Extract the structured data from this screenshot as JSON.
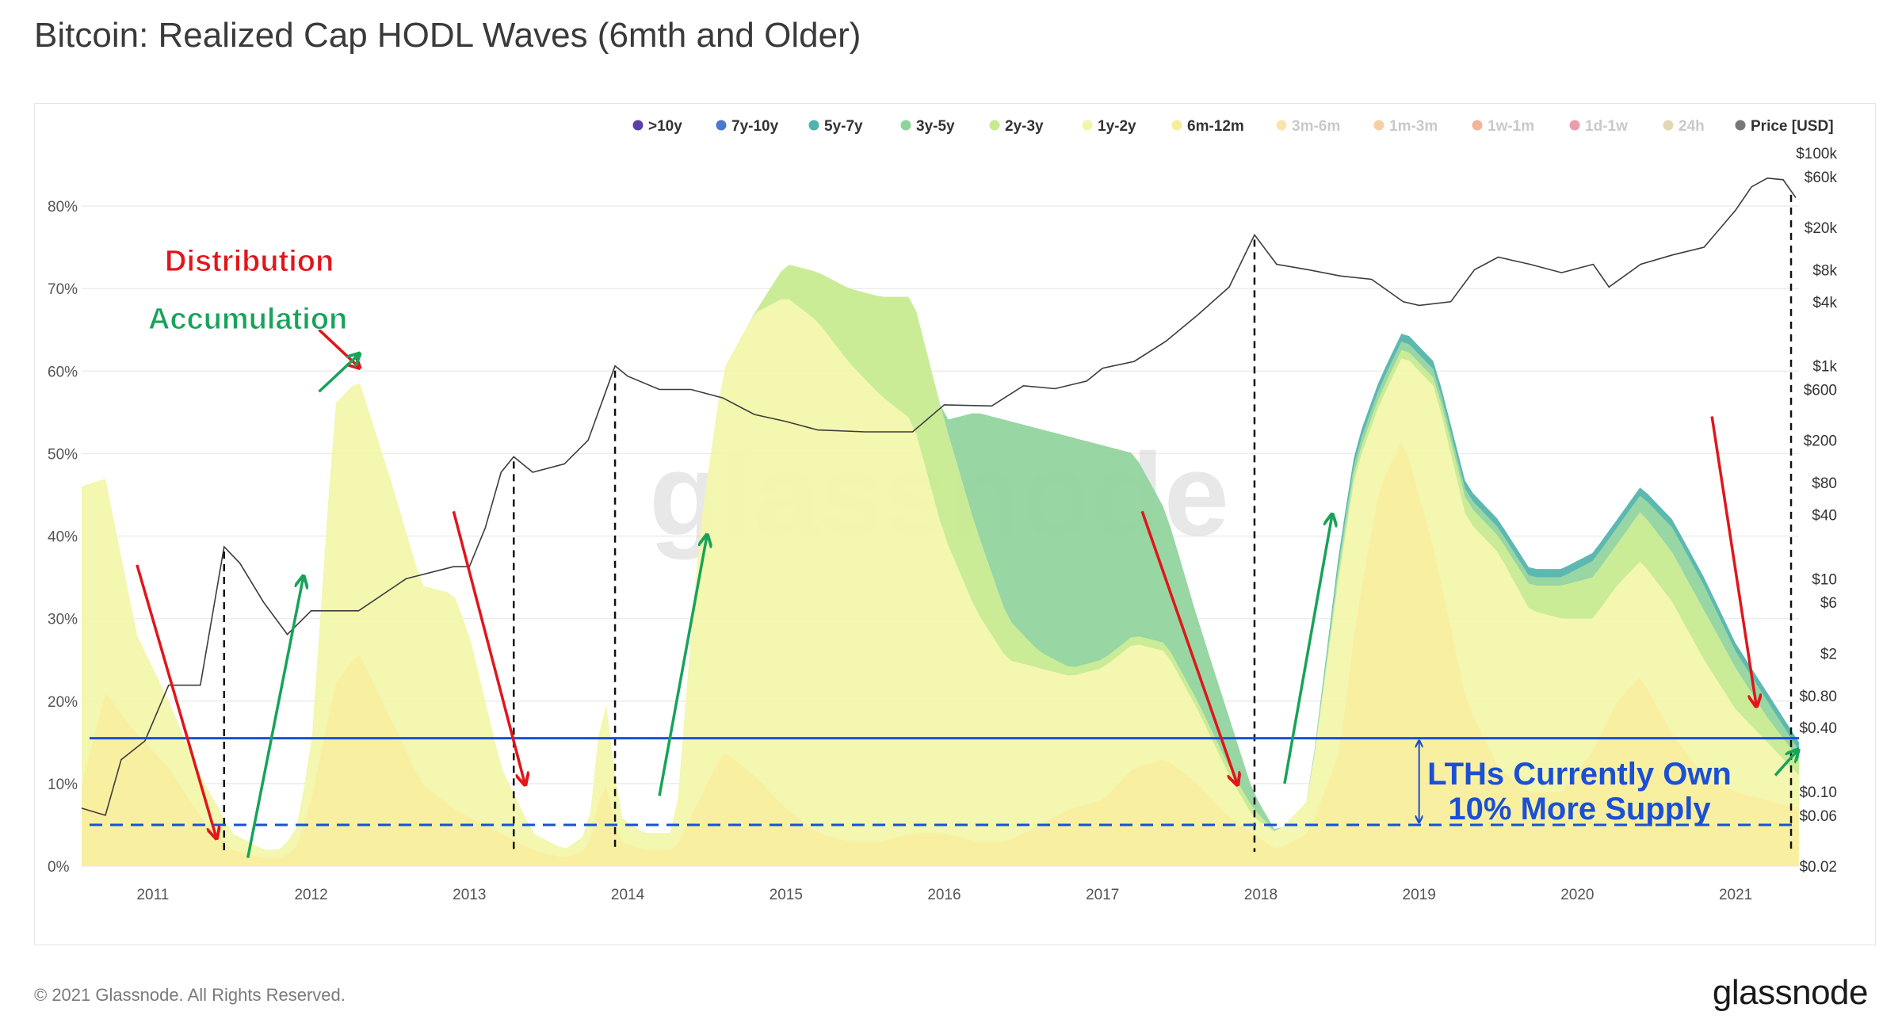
{
  "title": "Bitcoin: Realized Cap HODL Waves (6mth and Older)",
  "footer": "© 2021 Glassnode. All Rights Reserved.",
  "logo": "glassnode",
  "watermark": "glassnode",
  "colors": {
    "hline": "#1a4fd6",
    "distribution": "#e0161b",
    "accumulation": "#17a35a",
    "price": "#3c3c3c",
    "text": "#3a3a3a"
  },
  "annotations": {
    "distribution": "Distribution",
    "accumulation": "Accumulation",
    "lth_line1": "LTHs Currently Own",
    "lth_line2": "10% More Supply"
  },
  "chart_data": {
    "type": "area",
    "stacked": true,
    "x_unit": "year",
    "xlim": [
      2010.55,
      2021.4
    ],
    "ylim": [
      0,
      80
    ],
    "y_ticks": [
      "0%",
      "10%",
      "20%",
      "30%",
      "40%",
      "50%",
      "60%",
      "70%",
      "80%"
    ],
    "x_ticks": [
      "2011",
      "2012",
      "2013",
      "2014",
      "2015",
      "2016",
      "2017",
      "2018",
      "2019",
      "2020",
      "2021"
    ],
    "y2_scale": "log",
    "y2_ticks": [
      "$0.02",
      "$0.06",
      "$0.10",
      "$0.40",
      "$0.80",
      "$2",
      "$6",
      "$10",
      "$40",
      "$80",
      "$200",
      "$600",
      "$1k",
      "$4k",
      "$8k",
      "$20k",
      "$60k",
      "$100k"
    ],
    "y2_range": [
      0.02,
      100000
    ],
    "legend": [
      {
        "name": ">10y",
        "color": "#5b3fa6",
        "active": true
      },
      {
        "name": "7y-10y",
        "color": "#4878cf",
        "active": true
      },
      {
        "name": "5y-7y",
        "color": "#4fb3a9",
        "active": true
      },
      {
        "name": "3y-5y",
        "color": "#8fd39b",
        "active": true
      },
      {
        "name": "2y-3y",
        "color": "#c6ea8e",
        "active": true
      },
      {
        "name": "1y-2y",
        "color": "#f2f6a8",
        "active": true
      },
      {
        "name": "6m-12m",
        "color": "#f7ef98",
        "active": true
      },
      {
        "name": "3m-6m",
        "color": "#f6c85a",
        "active": false
      },
      {
        "name": "1m-3m",
        "color": "#f0a04b",
        "active": false
      },
      {
        "name": "1w-1m",
        "color": "#e76a3a",
        "active": false
      },
      {
        "name": "1d-1w",
        "color": "#d43e58",
        "active": false
      },
      {
        "name": "24h",
        "color": "#c7b26a",
        "active": false
      },
      {
        "name": "Price [USD]",
        "color": "#777777",
        "active": true
      }
    ],
    "reference_lines": [
      {
        "style": "solid",
        "value": 15.5
      },
      {
        "style": "dashed",
        "value": 5
      }
    ],
    "series": [
      {
        "name": "6m-12m",
        "color": "#f7ef98",
        "x": [
          2010.55,
          2010.7,
          2010.9,
          2011.1,
          2011.3,
          2011.5,
          2011.7,
          2011.8,
          2011.9,
          2012.0,
          2012.15,
          2012.3,
          2012.5,
          2012.7,
          2012.9,
          2013.0,
          2013.2,
          2013.4,
          2013.6,
          2013.75,
          2013.85,
          2013.95,
          2014.1,
          2014.3,
          2014.45,
          2014.6,
          2014.8,
          2015.0,
          2015.2,
          2015.4,
          2015.6,
          2015.8,
          2016.0,
          2016.2,
          2016.4,
          2016.6,
          2016.8,
          2017.0,
          2017.2,
          2017.4,
          2017.6,
          2017.8,
          2017.95,
          2018.1,
          2018.3,
          2018.5,
          2018.6,
          2018.75,
          2018.9,
          2019.1,
          2019.3,
          2019.5,
          2019.7,
          2019.9,
          2020.1,
          2020.25,
          2020.4,
          2020.6,
          2020.8,
          2021.0,
          2021.2,
          2021.4
        ],
        "values": [
          10,
          21,
          16,
          12,
          6,
          2,
          1,
          1,
          2,
          8,
          22,
          26,
          18,
          10,
          7,
          6,
          4,
          2,
          1,
          2,
          11,
          3,
          2,
          2,
          8,
          14,
          11,
          7,
          4,
          3,
          3,
          4,
          4,
          3,
          3,
          5,
          7,
          8,
          12,
          13,
          10,
          6,
          4,
          2,
          4,
          14,
          30,
          46,
          52,
          38,
          20,
          12,
          9,
          9,
          14,
          20,
          23,
          16,
          11,
          9,
          8,
          7
        ]
      },
      {
        "name": "1y-2y",
        "color": "#f2f6a8",
        "x": [
          2010.55,
          2010.7,
          2010.9,
          2011.1,
          2011.3,
          2011.5,
          2011.7,
          2011.8,
          2011.9,
          2012.0,
          2012.15,
          2012.3,
          2012.5,
          2012.7,
          2012.9,
          2013.0,
          2013.2,
          2013.4,
          2013.6,
          2013.75,
          2013.85,
          2013.95,
          2014.1,
          2014.3,
          2014.45,
          2014.6,
          2014.8,
          2015.0,
          2015.2,
          2015.4,
          2015.6,
          2015.8,
          2016.0,
          2016.2,
          2016.4,
          2016.6,
          2016.8,
          2017.0,
          2017.2,
          2017.4,
          2017.6,
          2017.8,
          2017.95,
          2018.1,
          2018.3,
          2018.5,
          2018.6,
          2018.75,
          2018.9,
          2019.1,
          2019.3,
          2019.5,
          2019.7,
          2019.9,
          2020.1,
          2020.25,
          2020.4,
          2020.6,
          2020.8,
          2021.0,
          2021.2,
          2021.4
        ],
        "values": [
          36,
          26,
          12,
          8,
          5,
          2,
          1,
          1,
          2,
          6,
          34,
          33,
          29,
          24,
          26,
          22,
          8,
          2,
          1,
          2,
          11,
          3,
          2,
          2,
          32,
          46,
          56,
          62,
          62,
          58,
          54,
          50,
          36,
          28,
          22,
          19,
          16,
          16,
          15,
          13,
          9,
          5,
          2,
          2,
          4,
          22,
          18,
          10,
          10,
          20,
          22,
          26,
          22,
          21,
          16,
          14,
          14,
          16,
          14,
          10,
          7,
          4
        ]
      },
      {
        "name": "2y-3y",
        "color": "#c6ea8e",
        "x": [
          2010.55,
          2010.7,
          2010.9,
          2011.1,
          2011.3,
          2011.5,
          2011.7,
          2011.8,
          2011.9,
          2012.0,
          2012.15,
          2012.3,
          2012.5,
          2012.7,
          2012.9,
          2013.0,
          2013.2,
          2013.4,
          2013.6,
          2013.75,
          2013.85,
          2013.95,
          2014.1,
          2014.3,
          2014.45,
          2014.6,
          2014.8,
          2015.0,
          2015.2,
          2015.4,
          2015.6,
          2015.8,
          2016.0,
          2016.2,
          2016.4,
          2016.6,
          2016.8,
          2017.0,
          2017.2,
          2017.4,
          2017.6,
          2017.8,
          2017.95,
          2018.1,
          2018.3,
          2018.5,
          2018.6,
          2018.75,
          2018.9,
          2019.1,
          2019.3,
          2019.5,
          2019.7,
          2019.9,
          2020.1,
          2020.25,
          2020.4,
          2020.6,
          2020.8,
          2021.0,
          2021.2,
          2021.4
        ],
        "values": [
          0,
          0,
          0,
          0,
          0,
          0,
          0,
          0,
          0,
          0,
          0,
          0,
          0,
          0,
          0,
          0,
          0,
          0,
          0,
          0,
          0,
          0,
          0,
          0,
          0,
          0,
          0,
          4,
          6,
          9,
          12,
          15,
          14,
          10,
          5,
          2,
          1,
          1,
          1,
          1,
          1,
          1,
          1,
          0,
          0,
          1,
          1,
          1,
          1,
          1,
          2,
          2,
          3,
          4,
          5,
          5,
          6,
          6,
          6,
          5,
          3,
          2
        ]
      },
      {
        "name": "3y-5y",
        "color": "#8fd39b",
        "x": [
          2010.55,
          2014.8,
          2015.0,
          2015.2,
          2015.4,
          2015.6,
          2015.8,
          2016.0,
          2016.2,
          2016.4,
          2016.6,
          2016.8,
          2017.0,
          2017.2,
          2017.4,
          2017.6,
          2017.8,
          2017.95,
          2018.1,
          2018.3,
          2018.5,
          2018.6,
          2018.75,
          2018.9,
          2019.1,
          2019.3,
          2019.5,
          2019.7,
          2019.9,
          2020.1,
          2020.25,
          2020.4,
          2020.6,
          2020.8,
          2021.0,
          2021.2,
          2021.4
        ],
        "values": [
          0,
          0,
          0,
          0,
          0,
          0,
          0,
          0,
          14,
          24,
          27,
          28,
          26,
          22,
          16,
          10,
          6,
          2,
          0,
          0,
          1,
          1,
          1,
          1,
          1,
          1,
          1,
          1,
          1,
          2,
          2,
          2,
          3,
          3,
          2,
          2,
          1
        ]
      },
      {
        "name": "5y-7y",
        "color": "#4fb3a9",
        "x": [
          2010.55,
          2016.8,
          2017.0,
          2017.2,
          2017.4,
          2017.6,
          2017.8,
          2017.95,
          2018.1,
          2018.3,
          2018.5,
          2018.6,
          2018.75,
          2018.9,
          2019.1,
          2019.3,
          2019.5,
          2019.7,
          2019.9,
          2020.1,
          2020.25,
          2020.4,
          2020.6,
          2020.8,
          2021.0,
          2021.2,
          2021.4
        ],
        "values": [
          0,
          0,
          0,
          0,
          0,
          0,
          0,
          0,
          0,
          0,
          1,
          1,
          1,
          1,
          1,
          1,
          1,
          1,
          1,
          1,
          1,
          1,
          1,
          1,
          1,
          1,
          1
        ]
      }
    ],
    "price": {
      "name": "Price [USD]",
      "color": "#3c3c3c",
      "x": [
        2010.55,
        2010.7,
        2010.8,
        2010.95,
        2011.1,
        2011.3,
        2011.45,
        2011.55,
        2011.7,
        2011.85,
        2012.0,
        2012.3,
        2012.6,
        2012.9,
        2013.0,
        2013.1,
        2013.2,
        2013.28,
        2013.4,
        2013.6,
        2013.75,
        2013.92,
        2014.0,
        2014.2,
        2014.4,
        2014.6,
        2014.8,
        2015.0,
        2015.2,
        2015.5,
        2015.8,
        2016.0,
        2016.3,
        2016.5,
        2016.7,
        2016.9,
        2017.0,
        2017.2,
        2017.4,
        2017.6,
        2017.8,
        2017.96,
        2018.1,
        2018.3,
        2018.5,
        2018.7,
        2018.9,
        2019.0,
        2019.2,
        2019.35,
        2019.5,
        2019.7,
        2019.9,
        2020.1,
        2020.2,
        2020.4,
        2020.6,
        2020.8,
        2021.0,
        2021.1,
        2021.2,
        2021.3,
        2021.38
      ],
      "values": [
        0.07,
        0.06,
        0.2,
        0.3,
        1,
        1,
        20,
        14,
        6,
        3,
        5,
        5,
        10,
        13,
        13,
        30,
        100,
        140,
        100,
        120,
        200,
        1000,
        800,
        600,
        600,
        500,
        350,
        300,
        250,
        240,
        240,
        430,
        420,
        650,
        610,
        720,
        950,
        1100,
        1700,
        3000,
        5500,
        17000,
        9000,
        8000,
        7000,
        6500,
        4000,
        3700,
        4000,
        8000,
        10500,
        9000,
        7500,
        9000,
        5500,
        9000,
        11000,
        13000,
        29000,
        48000,
        58000,
        56000,
        38000
      ]
    }
  }
}
